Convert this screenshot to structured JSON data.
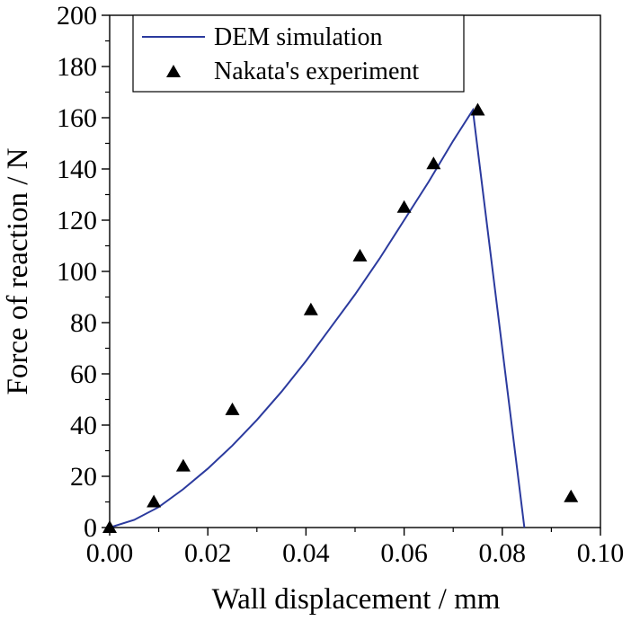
{
  "chart_data": {
    "type": "line",
    "title": "",
    "xlabel": "Wall displacement / mm",
    "ylabel": "Force of reaction / N",
    "xlim": [
      0.0,
      0.1
    ],
    "ylim": [
      0,
      200
    ],
    "x_ticks": [
      "0.00",
      "0.02",
      "0.04",
      "0.06",
      "0.08",
      "0.10"
    ],
    "y_ticks": [
      "0",
      "20",
      "40",
      "60",
      "80",
      "100",
      "120",
      "140",
      "160",
      "180",
      "200"
    ],
    "grid": false,
    "legend_position": "top-left",
    "series": [
      {
        "name": "DEM simulation",
        "kind": "line",
        "color": "#2b3a9e",
        "x": [
          0.0,
          0.005,
          0.01,
          0.015,
          0.02,
          0.025,
          0.03,
          0.035,
          0.04,
          0.045,
          0.05,
          0.055,
          0.06,
          0.065,
          0.07,
          0.074,
          0.0845
        ],
        "y": [
          0,
          3,
          8,
          15,
          23,
          32,
          42,
          53,
          65,
          78,
          91,
          105,
          120,
          135,
          151,
          163,
          0
        ]
      },
      {
        "name": "Nakata's experiment",
        "kind": "scatter",
        "marker": "triangle",
        "color": "#000000",
        "x": [
          0.0,
          0.009,
          0.015,
          0.025,
          0.041,
          0.051,
          0.06,
          0.066,
          0.075,
          0.094
        ],
        "y": [
          0,
          10,
          24,
          46,
          85,
          106,
          125,
          142,
          163,
          12
        ]
      }
    ]
  }
}
